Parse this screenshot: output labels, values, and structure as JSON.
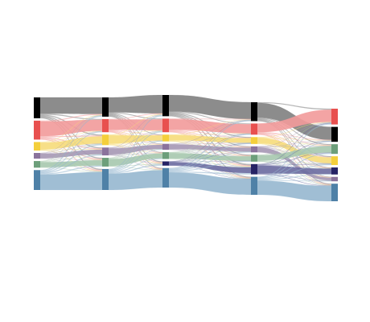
{
  "diagram": {
    "type": "alluvial",
    "stages": [
      "",
      "",
      "",
      "",
      ""
    ],
    "categories": [
      {
        "key": "black",
        "color": "#000000",
        "flow_color": "#808080",
        "label": ""
      },
      {
        "key": "red",
        "color": "#e8504f",
        "flow_color": "#f29a9a",
        "label": ""
      },
      {
        "key": "yellow",
        "color": "#f4cf3b",
        "flow_color": "#f6dc7a",
        "label": ""
      },
      {
        "key": "purple",
        "color": "#8b739c",
        "flow_color": "#a597b4",
        "label": ""
      },
      {
        "key": "green",
        "color": "#6d9f7b",
        "flow_color": "#a6c8ae",
        "label": ""
      },
      {
        "key": "navy",
        "color": "#262365",
        "flow_color": "#6a6aa0",
        "label": ""
      },
      {
        "key": "blue",
        "color": "#4f81a7",
        "flow_color": "#96b7cf",
        "label": ""
      }
    ],
    "node_values": [
      {
        "black": 22,
        "red": 20,
        "yellow": 9,
        "purple": 6,
        "green": 7,
        "blue": 21
      },
      {
        "black": 22,
        "red": 15,
        "yellow": 12,
        "purple": 9,
        "green": 10,
        "blue": 24
      },
      {
        "black": 25,
        "red": 16,
        "yellow": 8,
        "purple": 7,
        "green": 8,
        "navy": 5,
        "blue": 23
      },
      {
        "black": 22,
        "red": 13,
        "yellow": 8,
        "purple": 7,
        "green": 8,
        "navy": 12,
        "blue": 21
      },
      {
        "red": 18,
        "black": 17,
        "green": 11,
        "yellow": 10,
        "navy": 8,
        "purple": 5,
        "blue": 20
      }
    ]
  }
}
